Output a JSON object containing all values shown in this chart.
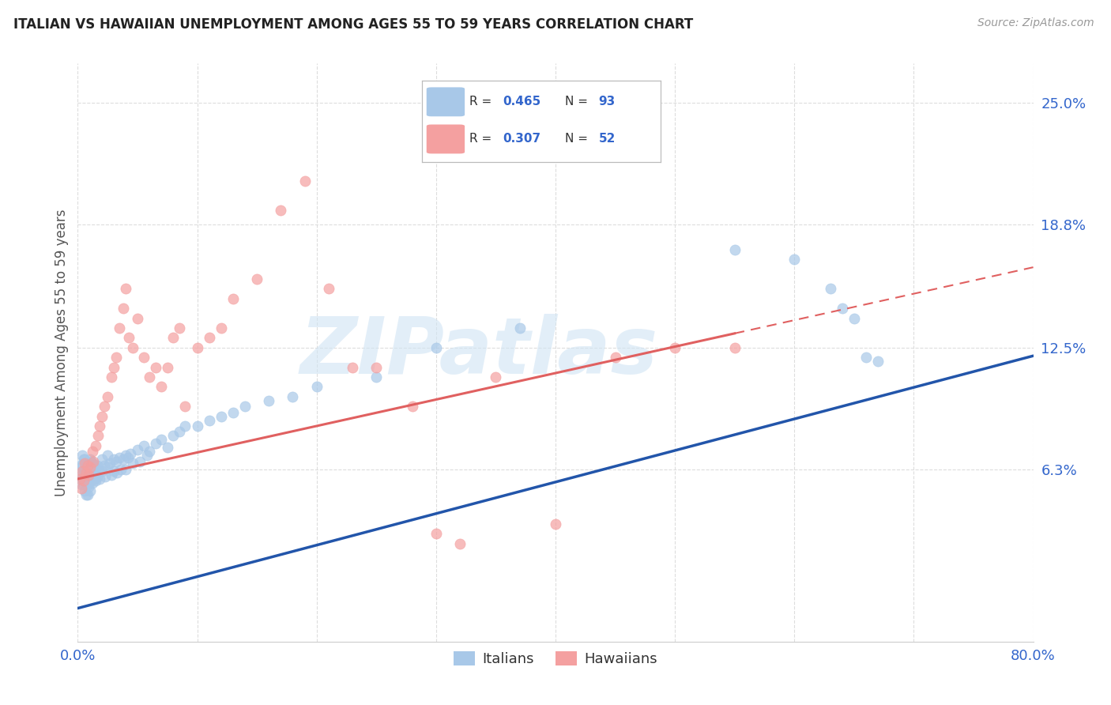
{
  "title": "ITALIAN VS HAWAIIAN UNEMPLOYMENT AMONG AGES 55 TO 59 YEARS CORRELATION CHART",
  "source": "Source: ZipAtlas.com",
  "ylabel": "Unemployment Among Ages 55 to 59 years",
  "xlim": [
    0,
    0.8
  ],
  "ylim": [
    -0.025,
    0.27
  ],
  "yticks": [
    0.063,
    0.125,
    0.188,
    0.25
  ],
  "ytick_labels": [
    "6.3%",
    "12.5%",
    "18.8%",
    "25.0%"
  ],
  "xticks": [
    0.0,
    0.1,
    0.2,
    0.3,
    0.4,
    0.5,
    0.6,
    0.7,
    0.8
  ],
  "italian_color": "#a8c8e8",
  "hawaiian_color": "#f4a0a0",
  "italian_line_color": "#2255aa",
  "hawaiian_line_color": "#e06060",
  "watermark_color": "#d0e4f4",
  "watermark": "ZIPatlas",
  "background_color": "#ffffff",
  "title_color": "#222222",
  "axis_label_color": "#555555",
  "tick_color": "#3366cc",
  "grid_color": "#dddddd",
  "italians_x": [
    0.002,
    0.003,
    0.003,
    0.004,
    0.004,
    0.004,
    0.005,
    0.005,
    0.005,
    0.006,
    0.006,
    0.006,
    0.006,
    0.007,
    0.007,
    0.007,
    0.007,
    0.008,
    0.008,
    0.008,
    0.008,
    0.009,
    0.009,
    0.009,
    0.01,
    0.01,
    0.01,
    0.01,
    0.011,
    0.011,
    0.011,
    0.012,
    0.012,
    0.012,
    0.013,
    0.013,
    0.014,
    0.014,
    0.015,
    0.015,
    0.016,
    0.016,
    0.017,
    0.018,
    0.02,
    0.02,
    0.022,
    0.023,
    0.025,
    0.025,
    0.027,
    0.028,
    0.03,
    0.03,
    0.032,
    0.033,
    0.035,
    0.036,
    0.038,
    0.04,
    0.04,
    0.042,
    0.044,
    0.046,
    0.05,
    0.052,
    0.055,
    0.058,
    0.06,
    0.065,
    0.07,
    0.075,
    0.08,
    0.085,
    0.09,
    0.1,
    0.11,
    0.12,
    0.13,
    0.14,
    0.16,
    0.18,
    0.2,
    0.25,
    0.3,
    0.37,
    0.55,
    0.6,
    0.63,
    0.64,
    0.65,
    0.66,
    0.67
  ],
  "italians_y": [
    0.065,
    0.06,
    0.055,
    0.07,
    0.065,
    0.058,
    0.068,
    0.062,
    0.055,
    0.068,
    0.063,
    0.058,
    0.052,
    0.066,
    0.061,
    0.056,
    0.05,
    0.065,
    0.06,
    0.055,
    0.05,
    0.064,
    0.059,
    0.054,
    0.068,
    0.063,
    0.058,
    0.052,
    0.067,
    0.062,
    0.057,
    0.066,
    0.061,
    0.056,
    0.065,
    0.059,
    0.064,
    0.058,
    0.063,
    0.057,
    0.065,
    0.059,
    0.063,
    0.058,
    0.068,
    0.062,
    0.065,
    0.059,
    0.07,
    0.064,
    0.066,
    0.06,
    0.068,
    0.062,
    0.067,
    0.061,
    0.069,
    0.063,
    0.068,
    0.07,
    0.063,
    0.069,
    0.071,
    0.066,
    0.073,
    0.067,
    0.075,
    0.07,
    0.072,
    0.076,
    0.078,
    0.074,
    0.08,
    0.082,
    0.085,
    0.085,
    0.088,
    0.09,
    0.092,
    0.095,
    0.098,
    0.1,
    0.105,
    0.11,
    0.125,
    0.135,
    0.175,
    0.17,
    0.155,
    0.145,
    0.14,
    0.12,
    0.118
  ],
  "hawaiians_x": [
    0.002,
    0.003,
    0.004,
    0.005,
    0.006,
    0.007,
    0.008,
    0.009,
    0.01,
    0.012,
    0.013,
    0.015,
    0.017,
    0.018,
    0.02,
    0.022,
    0.025,
    0.028,
    0.03,
    0.032,
    0.035,
    0.038,
    0.04,
    0.043,
    0.046,
    0.05,
    0.055,
    0.06,
    0.065,
    0.07,
    0.075,
    0.08,
    0.085,
    0.09,
    0.1,
    0.11,
    0.12,
    0.13,
    0.15,
    0.17,
    0.19,
    0.21,
    0.23,
    0.25,
    0.28,
    0.3,
    0.32,
    0.35,
    0.4,
    0.45,
    0.5,
    0.55
  ],
  "hawaiians_y": [
    0.058,
    0.053,
    0.062,
    0.057,
    0.066,
    0.061,
    0.065,
    0.06,
    0.064,
    0.072,
    0.067,
    0.075,
    0.08,
    0.085,
    0.09,
    0.095,
    0.1,
    0.11,
    0.115,
    0.12,
    0.135,
    0.145,
    0.155,
    0.13,
    0.125,
    0.14,
    0.12,
    0.11,
    0.115,
    0.105,
    0.115,
    0.13,
    0.135,
    0.095,
    0.125,
    0.13,
    0.135,
    0.15,
    0.16,
    0.195,
    0.21,
    0.155,
    0.115,
    0.115,
    0.095,
    0.03,
    0.025,
    0.11,
    0.035,
    0.12,
    0.125,
    0.125
  ],
  "italian_line_intercept": -0.008,
  "italian_line_slope": 0.161,
  "hawaiian_line_intercept": 0.058,
  "hawaiian_line_slope": 0.135
}
